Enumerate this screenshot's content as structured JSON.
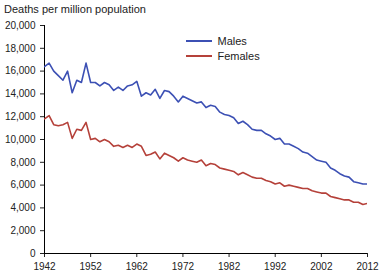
{
  "chart_data": {
    "type": "line",
    "title": "Deaths per million population",
    "x": [
      1942,
      1943,
      1944,
      1945,
      1946,
      1947,
      1948,
      1949,
      1950,
      1951,
      1952,
      1953,
      1954,
      1955,
      1956,
      1957,
      1958,
      1959,
      1960,
      1961,
      1962,
      1963,
      1964,
      1965,
      1966,
      1967,
      1968,
      1969,
      1970,
      1971,
      1972,
      1973,
      1974,
      1975,
      1976,
      1977,
      1978,
      1979,
      1980,
      1981,
      1982,
      1983,
      1984,
      1985,
      1986,
      1987,
      1988,
      1989,
      1990,
      1991,
      1992,
      1993,
      1994,
      1995,
      1996,
      1997,
      1998,
      1999,
      2000,
      2001,
      2002,
      2003,
      2004,
      2005,
      2006,
      2007,
      2008,
      2009,
      2010,
      2011,
      2012
    ],
    "series": [
      {
        "name": "Males",
        "color": "#3c50b4",
        "values": [
          16400,
          16700,
          16000,
          15600,
          15200,
          16000,
          14100,
          15200,
          15000,
          16700,
          15000,
          15000,
          14700,
          15000,
          14800,
          14300,
          14600,
          14300,
          14700,
          14800,
          15100,
          13800,
          14100,
          13900,
          14400,
          13600,
          14300,
          14200,
          13800,
          13300,
          13800,
          13600,
          13400,
          13200,
          13300,
          12800,
          13000,
          12900,
          12400,
          12200,
          12100,
          11900,
          11400,
          11600,
          11300,
          10900,
          10800,
          10800,
          10500,
          10300,
          10000,
          10100,
          9600,
          9600,
          9400,
          9200,
          8900,
          8800,
          8500,
          8200,
          8100,
          8000,
          7500,
          7300,
          7000,
          6800,
          6700,
          6300,
          6200,
          6100,
          6100
        ]
      },
      {
        "name": "Females",
        "color": "#b5413a",
        "values": [
          11800,
          12100,
          11300,
          11200,
          11300,
          11500,
          10100,
          10900,
          10800,
          11500,
          10000,
          10100,
          9800,
          10000,
          9800,
          9400,
          9500,
          9300,
          9500,
          9300,
          9600,
          9400,
          8600,
          8700,
          8900,
          8300,
          8800,
          8600,
          8400,
          8100,
          8400,
          8200,
          8100,
          8000,
          8200,
          7700,
          7900,
          7800,
          7500,
          7400,
          7300,
          7200,
          6900,
          7100,
          6900,
          6700,
          6600,
          6600,
          6400,
          6300,
          6100,
          6200,
          5900,
          6000,
          5900,
          5800,
          5700,
          5700,
          5500,
          5400,
          5300,
          5300,
          5000,
          4900,
          4800,
          4700,
          4700,
          4500,
          4500,
          4300,
          4400
        ]
      }
    ],
    "xlim": [
      1942,
      2012
    ],
    "xticks": [
      1942,
      1952,
      1962,
      1972,
      1982,
      1992,
      2002,
      2012
    ],
    "ylim": [
      0,
      20000
    ],
    "yticks": [
      0,
      {
        "value": 2000,
        "label": "2,000"
      },
      {
        "value": 4000,
        "label": "4,000"
      },
      {
        "value": 6000,
        "label": "6,000"
      },
      {
        "value": 8000,
        "label": "8,000"
      },
      {
        "value": 10000,
        "label": "10,000"
      },
      {
        "value": 12000,
        "label": "12,000"
      },
      {
        "value": 14000,
        "label": "14,000"
      },
      {
        "value": 16000,
        "label": "16,000"
      },
      {
        "value": 18000,
        "label": "18,000"
      },
      {
        "value": 20000,
        "label": "20,000"
      }
    ],
    "grid": false,
    "legend": "top"
  }
}
